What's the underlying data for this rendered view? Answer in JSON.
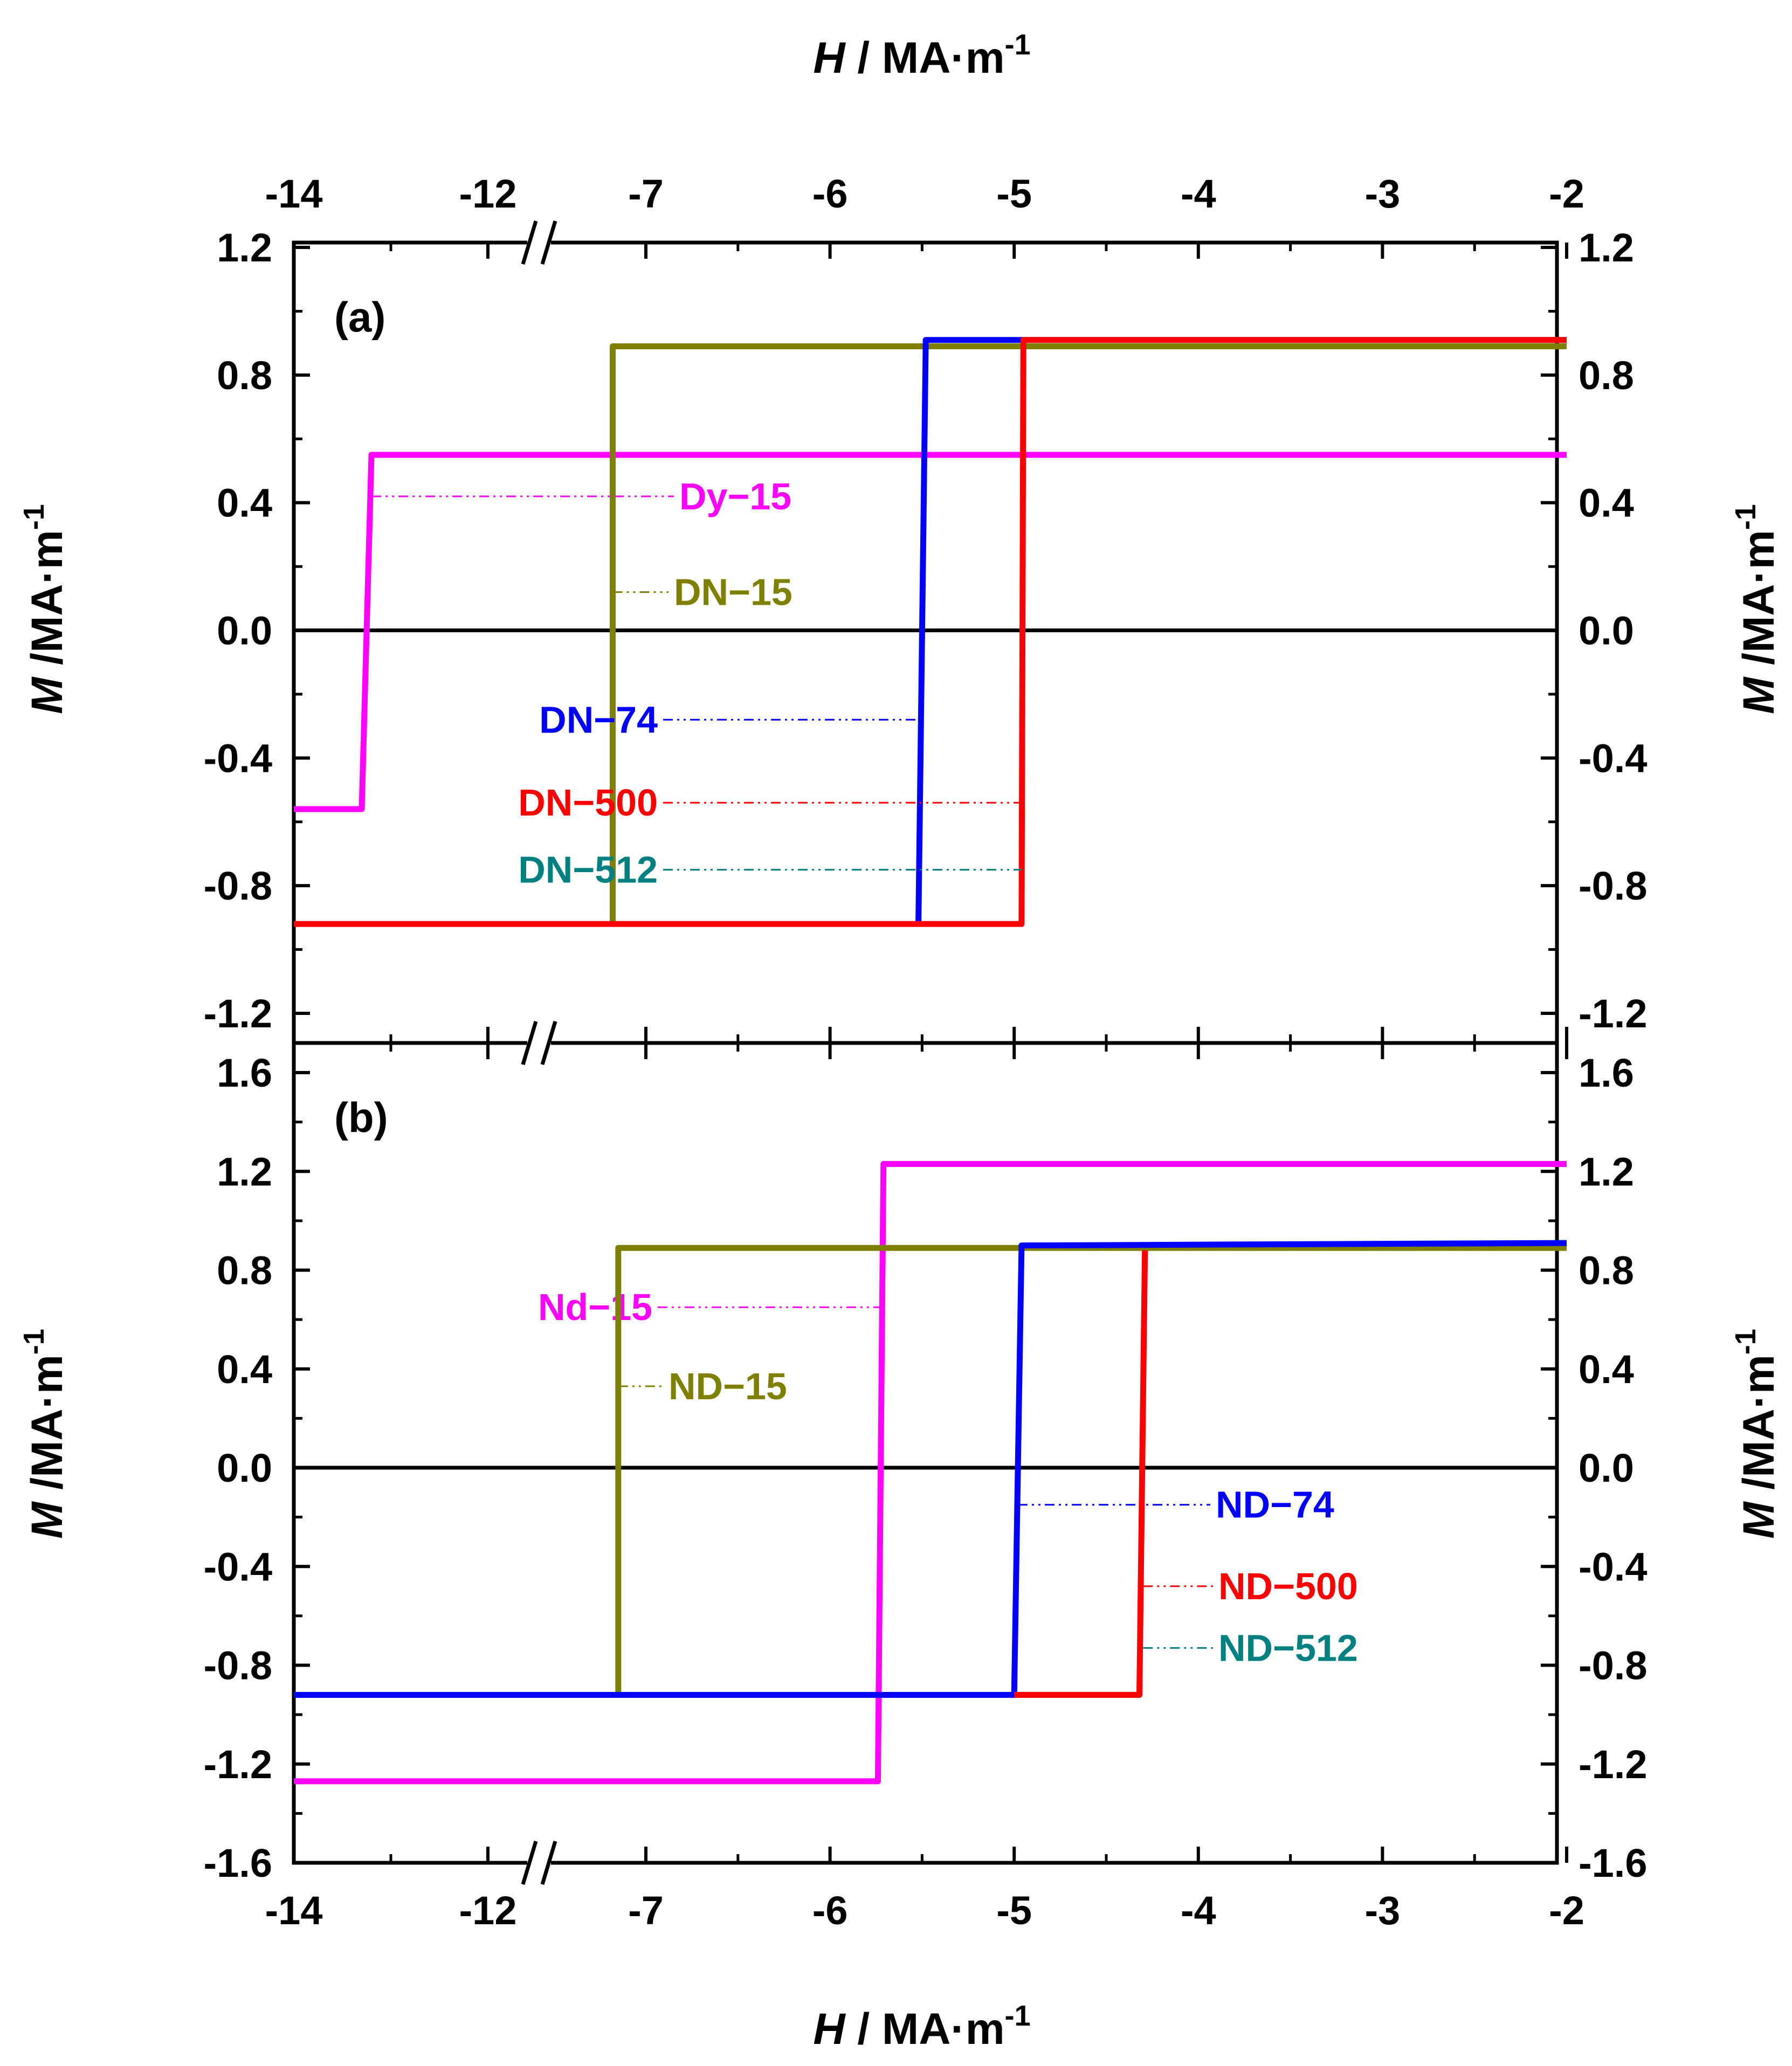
{
  "figure": {
    "x_axis_title_top": {
      "symbol": "H",
      "unit": " / MA·m",
      "exp": "-1"
    },
    "x_axis_title_bottom": {
      "symbol": "H",
      "unit": " / MA·m",
      "exp": "-1"
    },
    "y_axis_title": {
      "symbol": "M",
      "unit": " /MA·m",
      "exp": "-1"
    }
  },
  "chart_data": [
    {
      "type": "line",
      "panel_label": "(a)",
      "x_axis_broken": true,
      "x_ticks": [
        "-14",
        "-12",
        "-7",
        "-6",
        "-5",
        "-4",
        "-3",
        "-2"
      ],
      "y_ticks": [
        "1.2",
        "0.8",
        "0.4",
        "0.0",
        "-0.4",
        "-0.8",
        "-1.2"
      ],
      "ylim": [
        -1.3,
        1.2
      ],
      "xlabel": "H / MA·m-1",
      "ylabel": "M /MA·m-1",
      "zero_line": true,
      "series": [
        {
          "name": "Dy-15",
          "color": "#ff00ff",
          "label": {
            "prefix": "Dy",
            "suffix": "15"
          },
          "label_y": 0.42,
          "points": [
            [
              -14,
              -0.56
            ],
            [
              -13.3,
              -0.56
            ],
            [
              -13.2,
              0.55
            ],
            [
              -2,
              0.55
            ]
          ]
        },
        {
          "name": "DN-15",
          "color": "#808000",
          "label": {
            "prefix": "DN",
            "suffix": "15"
          },
          "label_y": 0.12,
          "points": [
            [
              -7.18,
              -0.92
            ],
            [
              -7.18,
              0.89
            ],
            [
              -2,
              0.89
            ]
          ]
        },
        {
          "name": "DN-74",
          "color": "#0000ff",
          "label": {
            "prefix": "DN",
            "suffix": "74"
          },
          "label_y": -0.28,
          "points": [
            [
              -5.52,
              -0.92
            ],
            [
              -5.48,
              0.91
            ],
            [
              -2,
              0.91
            ]
          ]
        },
        {
          "name": "DN-500",
          "color": "#ff0000",
          "label": {
            "prefix": "DN",
            "suffix": "500"
          },
          "label_y": -0.54,
          "points": [
            [
              -14,
              -0.92
            ],
            [
              -4.96,
              -0.92
            ],
            [
              -4.95,
              0.91
            ],
            [
              -2,
              0.91
            ]
          ]
        },
        {
          "name": "DN-512",
          "color": "#008080",
          "label": {
            "prefix": "DN",
            "suffix": "512"
          },
          "label_y": -0.75,
          "points": []
        }
      ]
    },
    {
      "type": "line",
      "panel_label": "(b)",
      "x_axis_broken": true,
      "x_ticks": [
        "-14",
        "-12",
        "-7",
        "-6",
        "-5",
        "-4",
        "-3",
        "-2"
      ],
      "y_ticks": [
        "1.6",
        "1.2",
        "0.8",
        "0.4",
        "0.0",
        "-0.4",
        "-0.8",
        "-1.2",
        "-1.6"
      ],
      "ylim": [
        -1.6,
        1.7
      ],
      "xlabel": "H / MA·m-1",
      "ylabel": "M /MA·m-1",
      "zero_line": true,
      "series": [
        {
          "name": "Nd-15",
          "color": "#ff00ff",
          "label": {
            "prefix": "Nd",
            "suffix": "15"
          },
          "label_y": 0.65,
          "points": [
            [
              -14,
              -1.27
            ],
            [
              -5.74,
              -1.27
            ],
            [
              -5.71,
              1.23
            ],
            [
              -2,
              1.23
            ]
          ]
        },
        {
          "name": "ND-15",
          "color": "#808000",
          "label": {
            "prefix": "ND",
            "suffix": "15"
          },
          "label_y": 0.33,
          "points": [
            [
              -7.15,
              -0.92
            ],
            [
              -7.15,
              0.89
            ],
            [
              -2,
              0.89
            ]
          ]
        },
        {
          "name": "ND-74",
          "color": "#0000ff",
          "label": {
            "prefix": "ND",
            "suffix": "74"
          },
          "label_y": -0.15,
          "points": [
            [
              -14,
              -0.92
            ],
            [
              -5.0,
              -0.92
            ],
            [
              -4.96,
              0.9
            ],
            [
              -2,
              0.91
            ]
          ]
        },
        {
          "name": "ND-500",
          "color": "#ff0000",
          "label": {
            "prefix": "ND",
            "suffix": "500"
          },
          "label_y": -0.48,
          "points": [
            [
              -5.0,
              -0.92
            ],
            [
              -4.32,
              -0.92
            ],
            [
              -4.29,
              0.88
            ]
          ]
        },
        {
          "name": "ND-512",
          "color": "#008080",
          "label": {
            "prefix": "ND",
            "suffix": "512"
          },
          "label_y": -0.73,
          "points": []
        }
      ]
    }
  ]
}
